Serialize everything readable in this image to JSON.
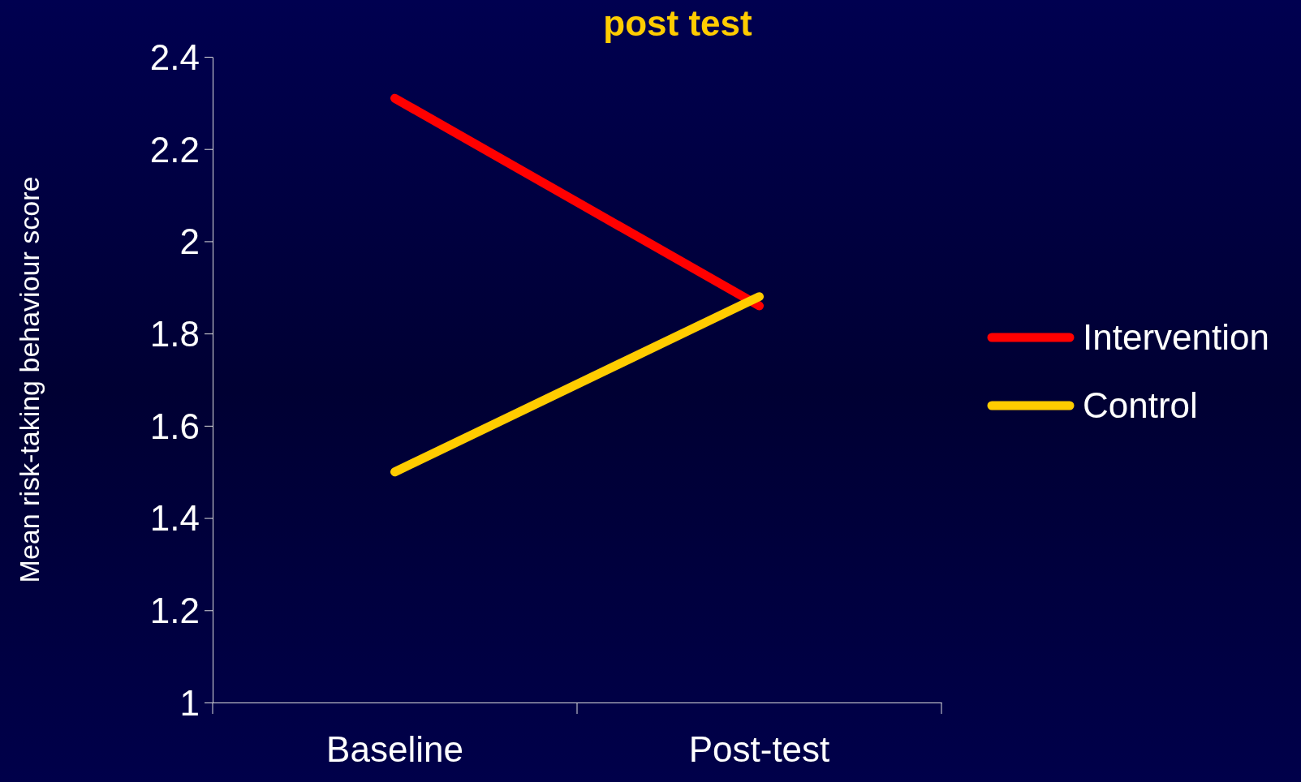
{
  "chart_data": {
    "type": "line",
    "title": "post test",
    "ylabel": "Mean risk-taking behaviour  score",
    "categories": [
      "Baseline",
      "Post-test"
    ],
    "series": [
      {
        "name": "Intervention",
        "color": "#ff0000",
        "values": [
          2.31,
          1.86
        ]
      },
      {
        "name": "Control",
        "color": "#ffcc00",
        "values": [
          1.5,
          1.88
        ]
      }
    ],
    "ylim": [
      1,
      2.4
    ],
    "yticks": [
      1,
      1.2,
      1.4,
      1.6,
      1.8,
      2,
      2.2,
      2.4
    ],
    "grid": false,
    "legend": "right",
    "marker": "none",
    "line_style": "solid"
  }
}
